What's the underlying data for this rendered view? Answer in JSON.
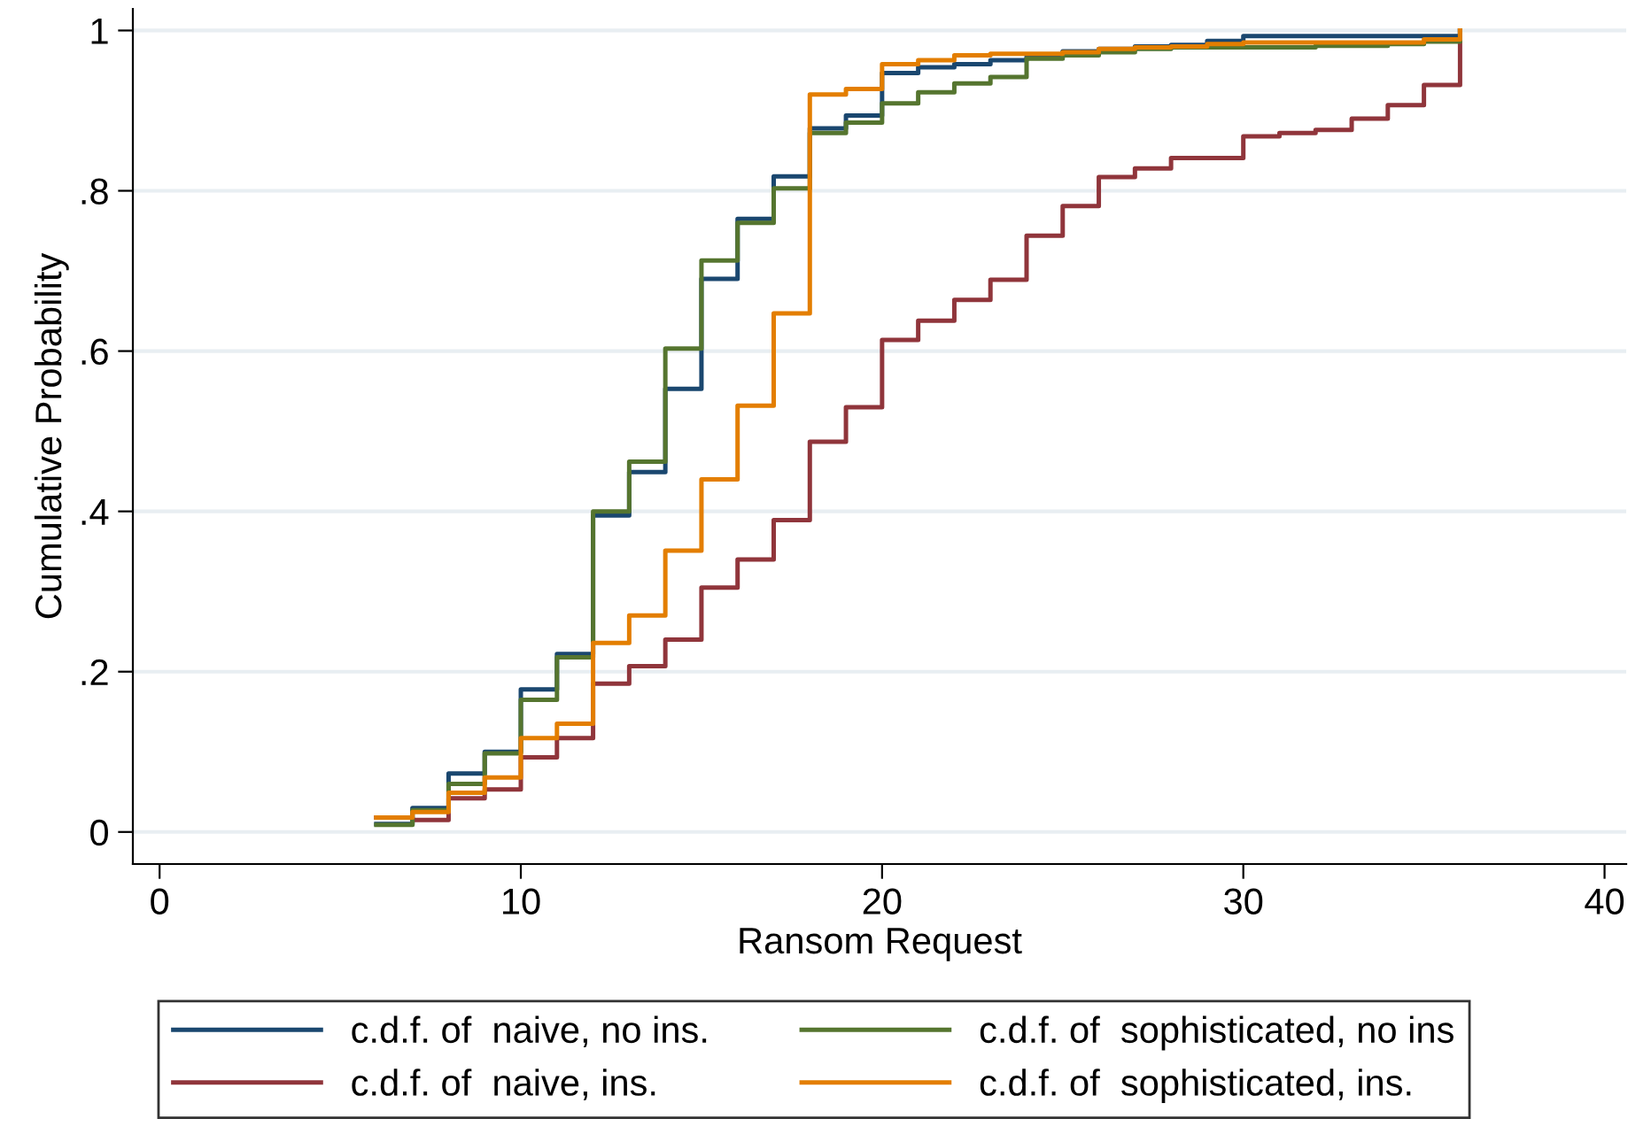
{
  "chart_data": {
    "type": "step",
    "xlabel": "Ransom Request",
    "ylabel": "Cumulative Probability",
    "x": [
      6,
      7,
      8,
      9,
      10,
      11,
      12,
      13,
      14,
      15,
      16,
      17,
      18,
      19,
      20,
      21,
      22,
      23,
      24,
      25,
      26,
      27,
      28,
      29,
      30,
      31,
      32,
      33,
      34,
      35,
      36
    ],
    "series": [
      {
        "name": "c.d.f. of  naive, no ins.",
        "color": "#1a476f",
        "values": [
          0.01,
          0.03,
          0.073,
          0.1,
          0.178,
          0.222,
          0.395,
          0.449,
          0.553,
          0.69,
          0.765,
          0.818,
          0.878,
          0.894,
          0.947,
          0.954,
          0.958,
          0.963,
          0.967,
          0.974,
          0.977,
          0.98,
          0.982,
          0.987,
          0.993,
          0.993,
          0.993,
          0.993,
          0.993,
          0.993,
          1
        ]
      },
      {
        "name": "c.d.f. of  naive, ins.",
        "color": "#90353b",
        "values": [
          0.018,
          0.015,
          0.042,
          0.053,
          0.093,
          0.117,
          0.185,
          0.207,
          0.24,
          0.305,
          0.34,
          0.389,
          0.487,
          0.53,
          0.614,
          0.638,
          0.664,
          0.689,
          0.744,
          0.781,
          0.817,
          0.828,
          0.841,
          0.841,
          0.868,
          0.872,
          0.876,
          0.89,
          0.907,
          0.932,
          1
        ]
      },
      {
        "name": "c.d.f. of  sophisticated, no ins",
        "color": "#55752f",
        "values": [
          0.009,
          0.027,
          0.06,
          0.098,
          0.165,
          0.218,
          0.4,
          0.462,
          0.603,
          0.713,
          0.76,
          0.803,
          0.872,
          0.885,
          0.909,
          0.923,
          0.934,
          0.942,
          0.965,
          0.969,
          0.973,
          0.977,
          0.979,
          0.979,
          0.979,
          0.979,
          0.981,
          0.981,
          0.983,
          0.986,
          1
        ]
      },
      {
        "name": "c.d.f. of  sophisticated, ins.",
        "color": "#e37e00",
        "values": [
          0.018,
          0.025,
          0.049,
          0.068,
          0.117,
          0.135,
          0.236,
          0.27,
          0.351,
          0.44,
          0.532,
          0.647,
          0.92,
          0.927,
          0.958,
          0.963,
          0.969,
          0.971,
          0.971,
          0.973,
          0.977,
          0.979,
          0.98,
          0.983,
          0.985,
          0.985,
          0.985,
          0.985,
          0.985,
          0.989,
          1
        ]
      }
    ],
    "xlim": [
      -0.74,
      40.6
    ],
    "xticks": [
      0,
      10,
      20,
      30,
      40
    ],
    "ylim": [
      -0.04,
      1.027
    ],
    "yticks": [
      0,
      {
        "value": 0.2,
        "label": ".2"
      },
      {
        "value": 0.4,
        "label": ".4"
      },
      {
        "value": 0.6,
        "label": ".6"
      },
      {
        "value": 0.8,
        "label": ".8"
      },
      1
    ],
    "grid": "y",
    "legend": "bottom",
    "line_style": "solid"
  }
}
